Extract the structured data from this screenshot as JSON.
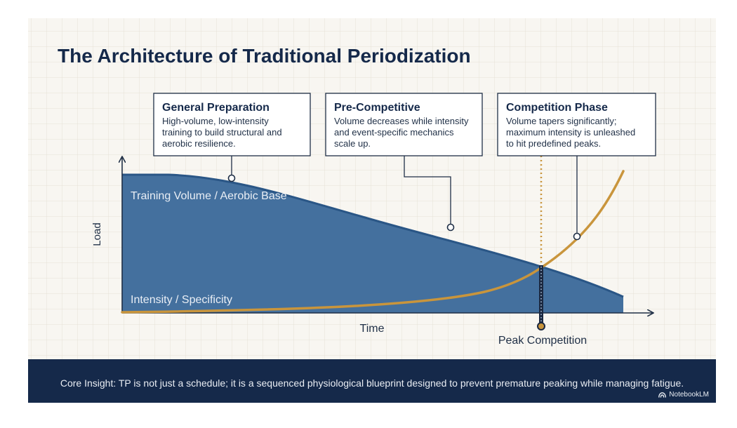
{
  "title": "The Architecture of Traditional Periodization",
  "phases": [
    {
      "name": "General Preparation",
      "description": [
        "High-volume, low-intensity",
        "training to build structural and",
        "aerobic resilience."
      ]
    },
    {
      "name": "Pre-Competitive",
      "description": [
        "Volume decreases while intensity",
        "and event-specific mechanics",
        "scale up."
      ]
    },
    {
      "name": "Competition Phase",
      "description": [
        "Volume tapers significantly;",
        "maximum intensity is unleashed",
        "to hit predefined peaks."
      ]
    }
  ],
  "axes": {
    "x_label": "Time",
    "y_label": "Load"
  },
  "curves": {
    "volume_label": "Training Volume / Aerobic Base",
    "intensity_label": "Intensity / Specificity"
  },
  "peak_label": "Peak Competition",
  "footer": {
    "insight": "Core Insight: TP is not just a schedule; it is a sequenced physiological blueprint designed to prevent premature peaking while managing fatigue.",
    "brand": "NotebookLM"
  },
  "colors": {
    "navy": "#15294a",
    "volume_fill": "#44709e",
    "volume_line": "#2a5686",
    "intensity_line": "#c9953c",
    "grid": "#e6e1d6",
    "canvas": "#f8f6f1"
  }
}
